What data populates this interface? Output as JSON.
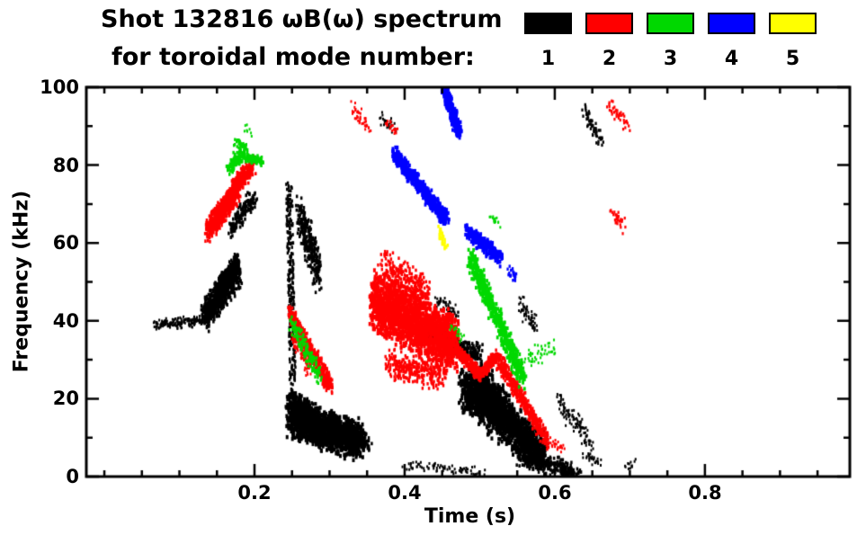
{
  "chart_data": {
    "type": "scatter",
    "title": "Shot 132816 ωB(ω) spectrum",
    "subtitle": "for toroidal mode number:",
    "xlabel": "Time (s)",
    "ylabel": "Frequency (kHz)",
    "xlim": [
      -0.024,
      0.993
    ],
    "ylim": [
      0,
      100
    ],
    "xticks": [
      0.2,
      0.4,
      0.6,
      0.8
    ],
    "xtick_labels": [
      "0.2",
      "0.4",
      "0.6",
      "0.8"
    ],
    "x_minor_step": 0.05,
    "yticks": [
      0,
      20,
      40,
      60,
      80,
      100
    ],
    "ytick_labels": [
      "0",
      "20",
      "40",
      "60",
      "80",
      "100"
    ],
    "y_minor_step": 10,
    "grid": false,
    "legend_position": "top-right",
    "legend": [
      {
        "label": "1",
        "color": "#000000"
      },
      {
        "label": "2",
        "color": "#ff0000"
      },
      {
        "label": "3",
        "color": "#00d800"
      },
      {
        "label": "4",
        "color": "#0000ff"
      },
      {
        "label": "5",
        "color": "#ffff00"
      }
    ],
    "segment_format": [
      "t_start_s",
      "t_end_s",
      "freq_start_kHz",
      "freq_end_kHz",
      "n_points",
      "time_spread_s",
      "freq_spread_kHz",
      "point_size_px"
    ],
    "series": [
      {
        "name": "n=1",
        "legend_label": "1",
        "color": "#000000",
        "segments": [
          [
            0.068,
            0.135,
            39,
            40,
            160,
            0.005,
            1.6,
            2
          ],
          [
            0.134,
            0.178,
            41,
            53,
            750,
            0.006,
            4.5,
            2.6
          ],
          [
            0.15,
            0.178,
            48,
            55,
            220,
            0.004,
            3.0,
            2.4
          ],
          [
            0.168,
            0.2,
            63,
            72,
            130,
            0.005,
            3.0,
            2.6
          ],
          [
            0.246,
            0.251,
            75,
            24,
            240,
            0.004,
            4.0,
            2.4
          ],
          [
            0.26,
            0.286,
            67,
            52,
            280,
            0.005,
            6.0,
            2.5
          ],
          [
            0.247,
            0.28,
            19,
            14,
            420,
            0.006,
            4.5,
            2.8
          ],
          [
            0.25,
            0.34,
            15,
            9,
            1500,
            0.009,
            5.5,
            3
          ],
          [
            0.3,
            0.348,
            10,
            9,
            250,
            0.01,
            2.5,
            2.5
          ],
          [
            0.43,
            0.5,
            37,
            31,
            320,
            0.006,
            3.0,
            2.5
          ],
          [
            0.44,
            0.47,
            45,
            42,
            50,
            0.005,
            2.0,
            2
          ],
          [
            0.478,
            0.585,
            23,
            6,
            1400,
            0.008,
            6.5,
            3
          ],
          [
            0.497,
            0.54,
            25,
            15,
            500,
            0.007,
            5.5,
            3
          ],
          [
            0.555,
            0.63,
            5,
            1,
            280,
            0.01,
            2.5,
            2.5
          ],
          [
            0.555,
            0.575,
            44,
            38,
            60,
            0.005,
            3.5,
            2
          ],
          [
            0.605,
            0.623,
            20,
            14,
            45,
            0.004,
            3.0,
            2
          ],
          [
            0.625,
            0.648,
            15,
            8,
            60,
            0.004,
            3.5,
            2
          ],
          [
            0.638,
            0.662,
            94,
            86,
            55,
            0.004,
            2.5,
            2.3
          ],
          [
            0.37,
            0.386,
            92,
            89,
            28,
            0.004,
            2.0,
            2
          ],
          [
            0.4,
            0.445,
            3,
            2,
            35,
            0.009,
            1.5,
            2
          ],
          [
            0.45,
            0.5,
            2,
            1,
            40,
            0.009,
            1.5,
            2
          ],
          [
            0.64,
            0.66,
            6,
            3,
            25,
            0.004,
            2.0,
            2
          ],
          [
            0.695,
            0.707,
            3,
            3,
            12,
            0.003,
            1.5,
            2
          ]
        ]
      },
      {
        "name": "n=2",
        "legend_label": "2",
        "color": "#ff0000",
        "segments": [
          [
            0.138,
            0.178,
            63,
            74,
            650,
            0.004,
            3.5,
            2.5
          ],
          [
            0.172,
            0.198,
            74,
            80,
            260,
            0.004,
            2.6,
            2.5
          ],
          [
            0.247,
            0.302,
            42,
            23,
            480,
            0.003,
            2.8,
            2.5
          ],
          [
            0.252,
            0.275,
            37,
            29,
            150,
            0.004,
            4.5,
            2
          ],
          [
            0.358,
            0.468,
            45,
            34,
            1900,
            0.006,
            8.5,
            3
          ],
          [
            0.37,
            0.432,
            54,
            47,
            260,
            0.006,
            5.0,
            2.4
          ],
          [
            0.378,
            0.452,
            29,
            26,
            300,
            0.006,
            4.5,
            2.4
          ],
          [
            0.468,
            0.5,
            33,
            26,
            230,
            0.004,
            2.0,
            2.5
          ],
          [
            0.5,
            0.522,
            26,
            31,
            150,
            0.003,
            1.8,
            2.5
          ],
          [
            0.522,
            0.59,
            31,
            9,
            420,
            0.004,
            2.4,
            2.5
          ],
          [
            0.33,
            0.352,
            95,
            89,
            40,
            0.004,
            2.4,
            2
          ],
          [
            0.376,
            0.39,
            91,
            88,
            22,
            0.003,
            1.8,
            2
          ],
          [
            0.672,
            0.698,
            96,
            90,
            40,
            0.004,
            2.4,
            2.2
          ],
          [
            0.675,
            0.694,
            68,
            64,
            30,
            0.004,
            2.0,
            2.2
          ],
          [
            0.595,
            0.612,
            9,
            7,
            25,
            0.004,
            1.5,
            2
          ]
        ]
      },
      {
        "name": "n=3",
        "legend_label": "3",
        "color": "#00d800",
        "segments": [
          [
            0.166,
            0.187,
            79,
            84,
            130,
            0.004,
            2.4,
            2.5
          ],
          [
            0.175,
            0.186,
            86,
            85,
            28,
            0.003,
            1.2,
            2.3
          ],
          [
            0.186,
            0.212,
            82,
            81,
            85,
            0.004,
            1.4,
            2.5
          ],
          [
            0.25,
            0.287,
            40,
            25,
            130,
            0.004,
            2.8,
            2.4
          ],
          [
            0.488,
            0.558,
            56,
            25,
            520,
            0.005,
            3.4,
            2.8
          ],
          [
            0.558,
            0.6,
            30,
            33,
            45,
            0.006,
            3.0,
            2
          ],
          [
            0.515,
            0.526,
            67,
            65,
            14,
            0.003,
            1.5,
            2
          ],
          [
            0.463,
            0.477,
            38,
            36,
            20,
            0.004,
            1.8,
            2
          ],
          [
            0.187,
            0.194,
            90,
            88,
            8,
            0.003,
            1.2,
            2
          ]
        ]
      },
      {
        "name": "n=4",
        "legend_label": "4",
        "color": "#0000ff",
        "segments": [
          [
            0.385,
            0.456,
            83,
            66,
            620,
            0.004,
            2.4,
            2.8
          ],
          [
            0.452,
            0.473,
            100,
            88,
            260,
            0.004,
            2.8,
            2.8
          ],
          [
            0.484,
            0.527,
            63,
            56,
            260,
            0.004,
            2.2,
            2.8
          ],
          [
            0.538,
            0.55,
            53,
            51,
            22,
            0.004,
            1.6,
            2.3
          ]
        ]
      },
      {
        "name": "n=5",
        "legend_label": "5",
        "color": "#ffff00",
        "segments": [
          [
            0.445,
            0.456,
            63,
            59,
            30,
            0.003,
            1.8,
            2.5
          ]
        ]
      }
    ]
  }
}
